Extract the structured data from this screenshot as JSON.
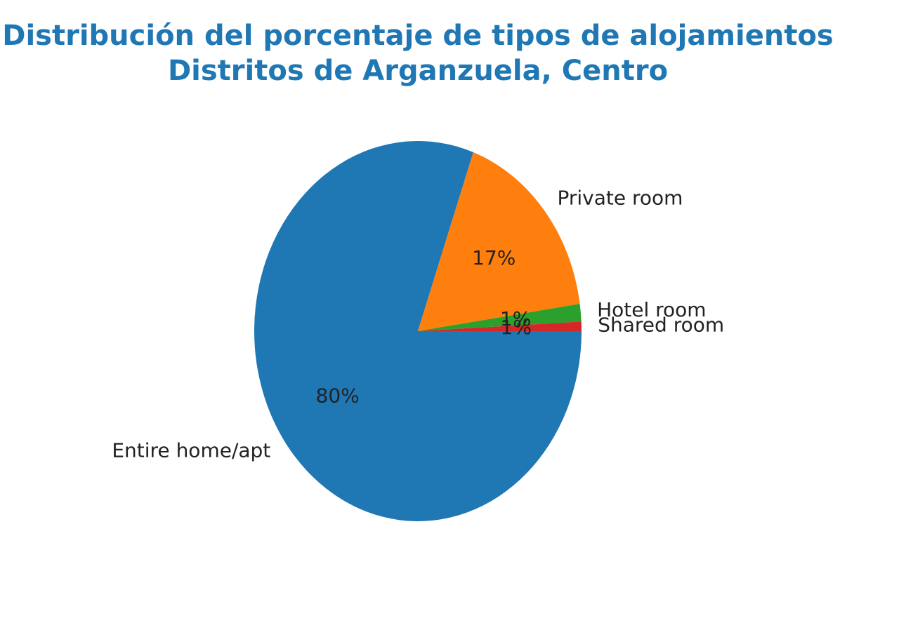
{
  "chart_data": {
    "type": "pie",
    "title_line1": "Distribución del porcentaje de tipos de alojamientos",
    "title_line2": "Distritos de Arganzuela, Centro",
    "slices": [
      {
        "label": "Entire home/apt",
        "value": 80.5,
        "pct_label": "80%",
        "color": "#1f77b4"
      },
      {
        "label": "Private room",
        "value": 17.2,
        "pct_label": "17%",
        "color": "#ff7f0e"
      },
      {
        "label": "Hotel room",
        "value": 1.5,
        "pct_label": "1%",
        "color": "#2ca02c"
      },
      {
        "label": "Shared room",
        "value": 0.8,
        "pct_label": "1%",
        "color": "#d62728"
      }
    ],
    "start_angle_deg": 0,
    "direction": "clockwise",
    "legend": false
  }
}
